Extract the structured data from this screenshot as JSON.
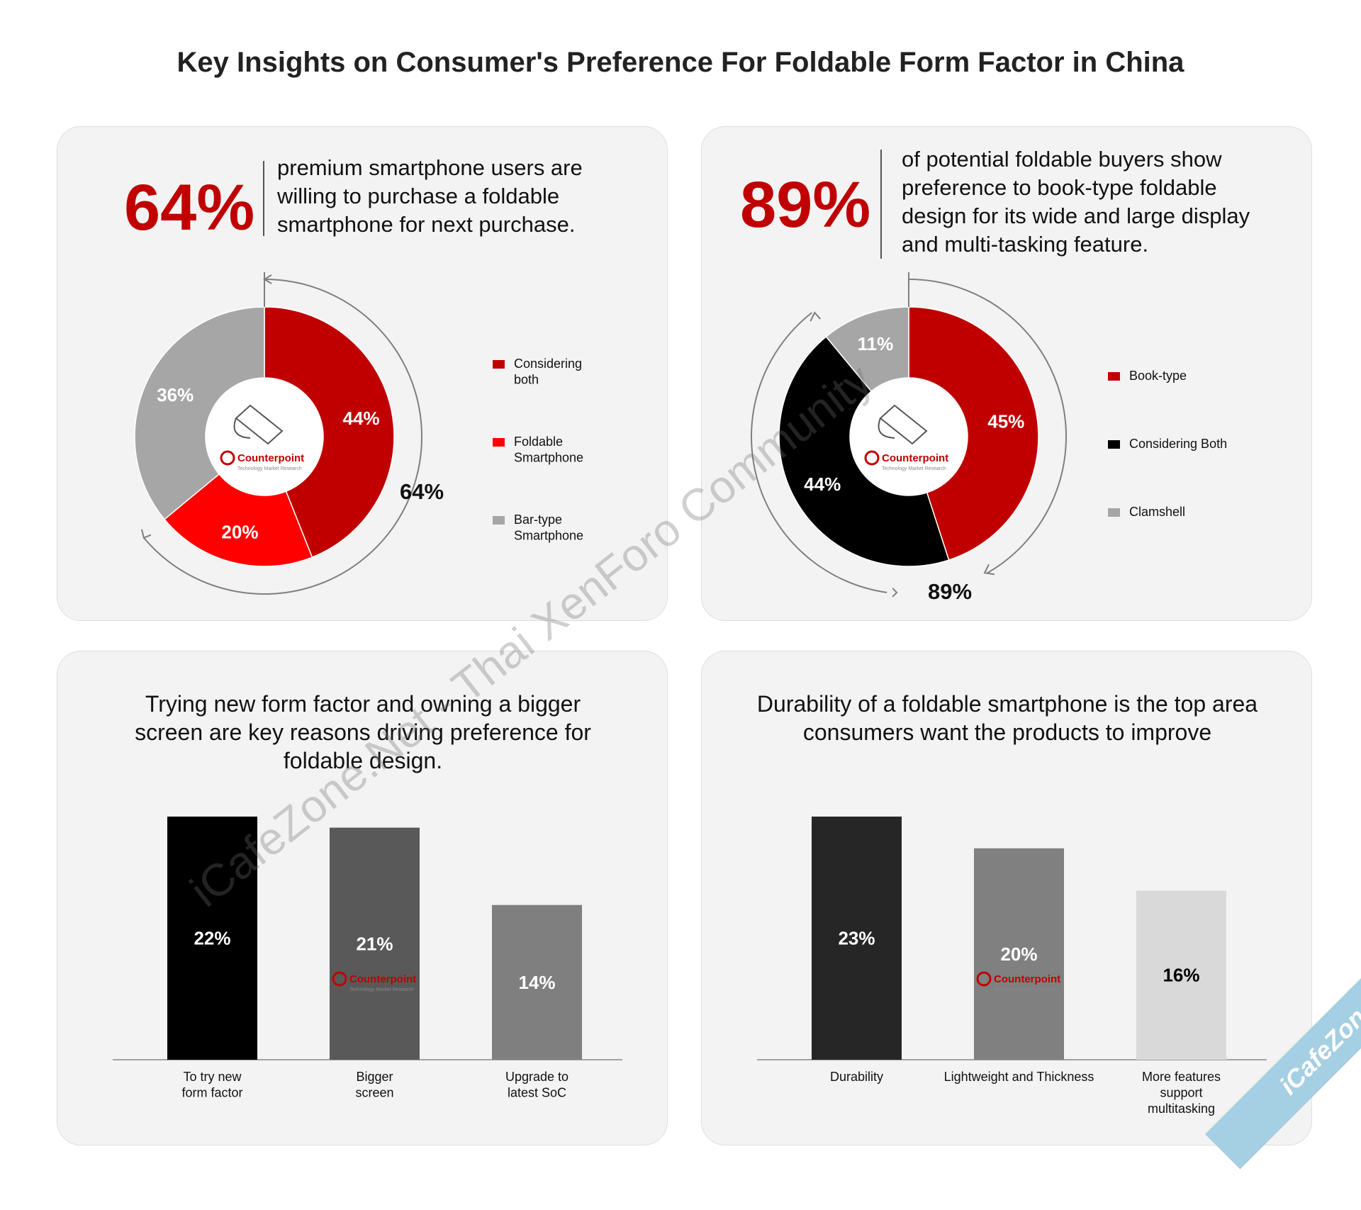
{
  "title": "Key Insights on Consumer's Preference For Foldable Form Factor in China",
  "panel1": {
    "headline_pct": "64%",
    "statement": [
      "premium smartphone users are",
      "willing to purchase a foldable",
      "smartphone for next purchase."
    ]
  },
  "panel2": {
    "headline_pct": "89%",
    "statement": [
      "of potential foldable buyers show",
      "preference to book-type foldable",
      "design for its wide and large display",
      "and multi-tasking feature."
    ]
  },
  "panel3": {
    "heading": [
      "Trying new form factor and owning a bigger",
      "screen are key reasons driving preference for",
      "foldable design."
    ]
  },
  "panel4": {
    "heading": [
      "Durability of a foldable smartphone is the top area",
      "consumers want the products to improve"
    ]
  },
  "logo": {
    "name": "Counterpoint",
    "tagline": "Technology Market Research"
  },
  "watermark": "iCafeZone.Net - Thai XenForo Community",
  "corner_ribbon": "iCafeZone",
  "colors": {
    "dark_red": "#c00000",
    "red": "#ff0000",
    "gray": "#a6a6a6",
    "black": "#000000"
  },
  "chart_data": [
    {
      "type": "pie",
      "style": "donut",
      "labels": [
        "Considering both",
        "Foldable Smartphone",
        "Bar-type Smartphone"
      ],
      "values": [
        44,
        20,
        36
      ],
      "value_labels": [
        "44%",
        "20%",
        "36%"
      ],
      "colors": [
        "#c00000",
        "#ff0000",
        "#a6a6a6"
      ],
      "legend": [
        "Considering\nboth",
        "Foldable\nSmartphone",
        "Bar-type\nSmartphone"
      ],
      "legend_position": "right",
      "bracket_label": "64%"
    },
    {
      "type": "pie",
      "style": "donut",
      "labels": [
        "Book-type",
        "Considering Both",
        "Clamshell"
      ],
      "values": [
        45,
        44,
        11
      ],
      "value_labels": [
        "45%",
        "44%",
        "11%"
      ],
      "colors": [
        "#c00000",
        "#000000",
        "#a6a6a6"
      ],
      "legend": [
        "Book-type",
        "Considering Both",
        "Clamshell"
      ],
      "legend_position": "right",
      "bracket_label": "89%"
    },
    {
      "type": "bar",
      "categories": [
        "To try new\nform factor",
        "Bigger\nscreen",
        "Upgrade to\nlatest SoC"
      ],
      "values": [
        22,
        21,
        14
      ],
      "value_labels": [
        "22%",
        "21%",
        "14%"
      ],
      "colors": [
        "#000000",
        "#595959",
        "#7f7f7f"
      ],
      "label_colors": [
        "#ffffff",
        "#ffffff",
        "#ffffff"
      ],
      "ylim": [
        0,
        22
      ]
    },
    {
      "type": "bar",
      "categories": [
        "Durability",
        "Lightweight and Thickness",
        "More features\nsupport\nmultitasking"
      ],
      "values": [
        23,
        20,
        16
      ],
      "value_labels": [
        "23%",
        "20%",
        "16%"
      ],
      "colors": [
        "#262626",
        "#808080",
        "#d9d9d9"
      ],
      "label_colors": [
        "#ffffff",
        "#ffffff",
        "#000000"
      ],
      "ylim": [
        0,
        23
      ]
    }
  ]
}
